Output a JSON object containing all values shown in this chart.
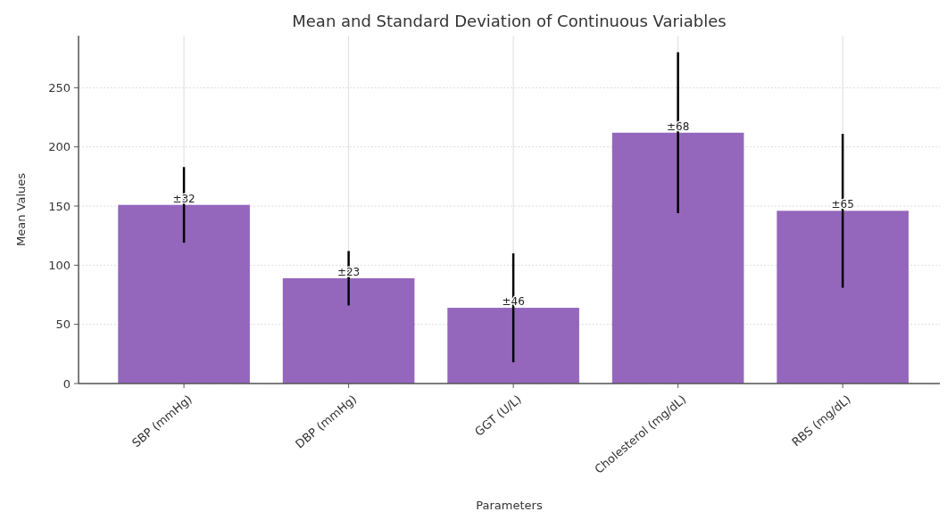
{
  "chart_data": {
    "type": "bar",
    "title": "Mean and Standard Deviation of Continuous Variables",
    "xlabel": "Parameters",
    "ylabel": "Mean Values",
    "categories": [
      "SBP (mmHg)",
      "DBP (mmHg)",
      "GGT (U/L)",
      "Cholesterol (mg/dL)",
      "RBS (mg/dL)"
    ],
    "values": [
      151,
      89,
      64,
      212,
      146
    ],
    "errors": [
      32,
      23,
      46,
      68,
      65
    ],
    "annotations": [
      {
        "text": "±32",
        "x": "SBP (mmHg)",
        "y": 151
      },
      {
        "text": "±23",
        "x": "DBP (mmHg)",
        "y": 89
      },
      {
        "text": "±46",
        "x": "GGT (U/L)",
        "y": 64
      },
      {
        "text": "±68",
        "x": "Cholesterol (mg/dL)",
        "y": 212
      },
      {
        "text": "±65",
        "x": "RBS (mg/dL)",
        "y": 146
      }
    ],
    "color": "#9467bd",
    "ylim": [
      0,
      294
    ],
    "yticks": [
      0,
      50,
      100,
      150,
      200,
      250
    ],
    "grid": true
  }
}
